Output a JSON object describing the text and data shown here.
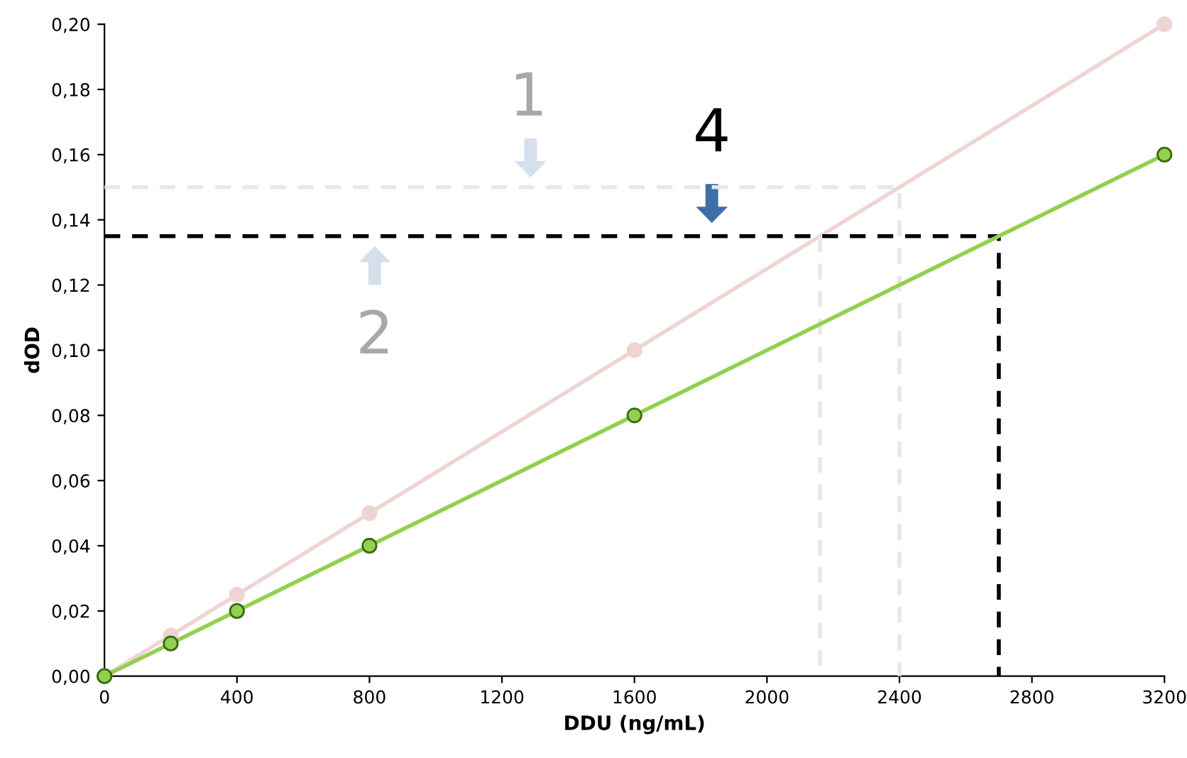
{
  "chart_data": {
    "type": "line",
    "xlabel": "DDU (ng/mL)",
    "ylabel": "dOD",
    "xlim": [
      0,
      3200
    ],
    "ylim": [
      0,
      0.2
    ],
    "xticks": [
      0,
      400,
      800,
      1200,
      1600,
      2000,
      2400,
      2800,
      3200
    ],
    "yticks": [
      {
        "value": 0,
        "label": "0,00"
      },
      {
        "value": 0.02,
        "label": "0,02"
      },
      {
        "value": 0.04,
        "label": "0,04"
      },
      {
        "value": 0.06,
        "label": "0,06"
      },
      {
        "value": 0.08,
        "label": "0,08"
      },
      {
        "value": 0.1,
        "label": "0,10"
      },
      {
        "value": 0.12,
        "label": "0,12"
      },
      {
        "value": 0.14,
        "label": "0,14"
      },
      {
        "value": 0.16,
        "label": "0,16"
      },
      {
        "value": 0.18,
        "label": "0,18"
      },
      {
        "value": 0.2,
        "label": "0,20"
      }
    ],
    "grid": false,
    "marker": "circle",
    "series": [
      {
        "color": "#eed5d4",
        "x": [
          0,
          200,
          400,
          800,
          1600,
          3200
        ],
        "values": [
          0,
          0.0125,
          0.025,
          0.05,
          0.1,
          0.2
        ]
      },
      {
        "color": "#e8e8e8",
        "x": [
          0,
          2400,
          2400
        ],
        "values": [
          0.15,
          0.15,
          0
        ],
        "line_style": "dashed",
        "marker": "none"
      },
      {
        "color": "#e8e8e8",
        "x": [
          2160,
          2160
        ],
        "values": [
          0.135,
          0
        ],
        "line_style": "dashed",
        "marker": "none"
      },
      {
        "color": "#000000",
        "x": [
          0,
          2700,
          2700
        ],
        "values": [
          0.135,
          0.135,
          0
        ],
        "line_style": "dashed",
        "marker": "none"
      },
      {
        "color": "#92d050",
        "x": [
          0,
          200,
          400,
          800,
          1600,
          3200
        ],
        "values": [
          0,
          0.01,
          0.02,
          0.04,
          0.08,
          0.16
        ]
      }
    ],
    "annotations": [
      "1",
      "2",
      "4"
    ]
  }
}
